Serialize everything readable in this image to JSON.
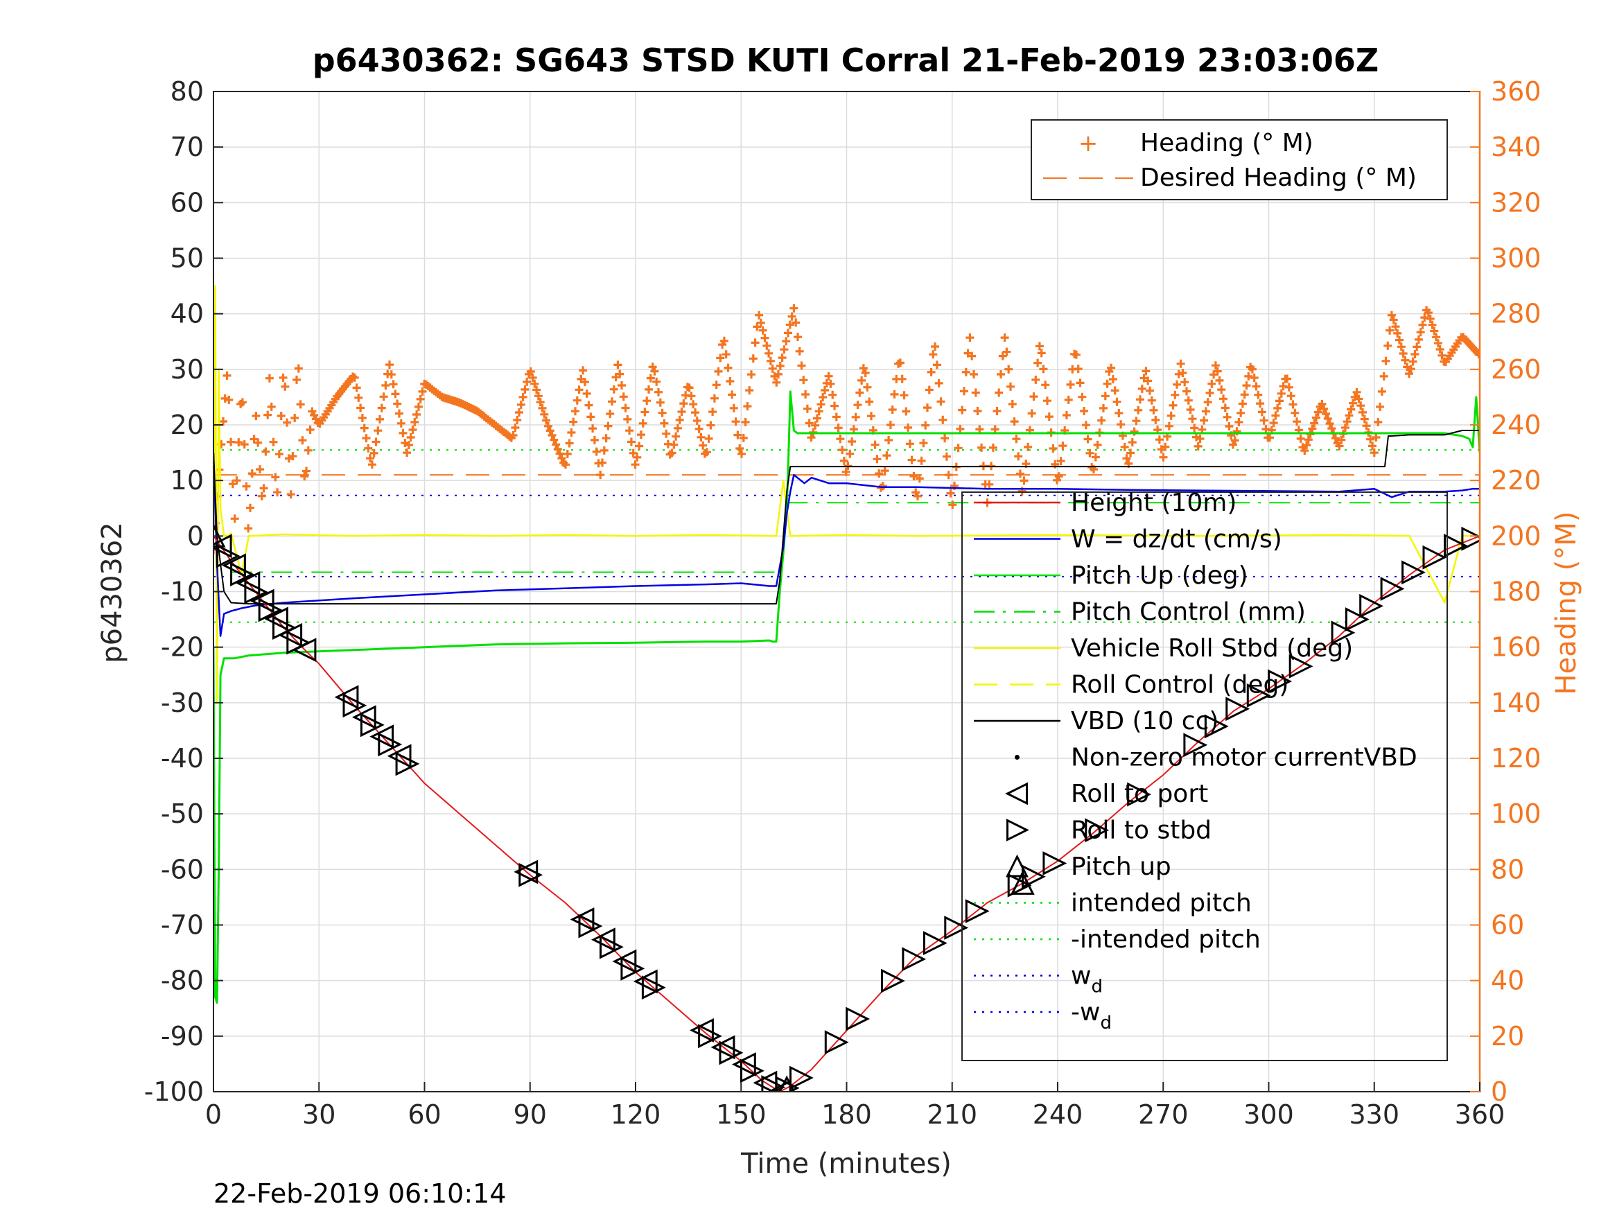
{
  "chart_data": {
    "type": "line",
    "title": "p6430362: SG643 STSD KUTI Corral 21-Feb-2019 23:03:06Z",
    "xlabel": "Time (minutes)",
    "ylabel": "p6430362",
    "y2label": "Heading (°M)",
    "timestamp": "22-Feb-2019 06:10:14",
    "xlim": [
      0,
      360
    ],
    "ylim": [
      -100,
      80
    ],
    "y2lim": [
      0,
      360
    ],
    "x_ticks": [
      "0",
      "30",
      "60",
      "90",
      "120",
      "150",
      "180",
      "210",
      "240",
      "270",
      "300",
      "330",
      "360"
    ],
    "y_ticks": [
      "80",
      "70",
      "60",
      "50",
      "40",
      "30",
      "20",
      "10",
      "0",
      "-10",
      "-20",
      "-30",
      "-40",
      "-50",
      "-60",
      "-70",
      "-80",
      "-90",
      "-100"
    ],
    "y2_ticks": [
      "360",
      "340",
      "320",
      "300",
      "280",
      "260",
      "240",
      "220",
      "200",
      "180",
      "160",
      "140",
      "120",
      "100",
      "80",
      "60",
      "40",
      "20",
      "0"
    ],
    "grid": true,
    "colors": {
      "orange": "#F47520",
      "red": "#E41A1C",
      "blue": "#0000E6",
      "green": "#00E000",
      "yellow": "#F5F500",
      "black": "#000000",
      "grid": "#DCDCDC"
    },
    "legend_heading": {
      "placement": "top-right",
      "entries": [
        "Heading (° M)",
        "Desired Heading (° M)"
      ]
    },
    "legend_main": {
      "placement": "center-right",
      "entries": [
        {
          "label": "Height (10m)",
          "style": "red-line"
        },
        {
          "label": "W = dz/dt (cm/s)",
          "style": "blue-line"
        },
        {
          "label": "Pitch Up (deg)",
          "style": "green-line"
        },
        {
          "label": "Pitch Control (mm)",
          "style": "green-dashdot"
        },
        {
          "label": "Vehicle Roll Stbd (deg)",
          "style": "yellow-line"
        },
        {
          "label": "Roll Control (deg)",
          "style": "yellow-dash"
        },
        {
          "label": "VBD (10 cc)",
          "style": "black-line"
        },
        {
          "label": "Non-zero motor currentVBD",
          "style": "black-dot"
        },
        {
          "label": "Roll to port",
          "style": "left-triangle"
        },
        {
          "label": "Roll to stbd",
          "style": "right-triangle"
        },
        {
          "label": "Pitch up",
          "style": "up-triangle"
        },
        {
          "label": "intended pitch",
          "style": "green-dotted"
        },
        {
          "label": "-intended pitch",
          "style": "green-dotted"
        },
        {
          "label": "w",
          "sub": "d",
          "style": "blue-dotted"
        },
        {
          "label": "-w",
          "sub": "d",
          "style": "blue-dotted"
        }
      ]
    },
    "reference_lines": {
      "intended_pitch": 15.5,
      "neg_intended_pitch": -15.5,
      "w_d": 7.3,
      "neg_w_d": -7.3,
      "desired_heading_deg": 222,
      "pitch_control_dive": -6.5,
      "pitch_control_climb": 6.0
    },
    "series": [
      {
        "name": "Height (10m)",
        "x": [
          0,
          5,
          10,
          15,
          20,
          26,
          30,
          40,
          50,
          60,
          70,
          80,
          90,
          100,
          110,
          120,
          130,
          140,
          150,
          156,
          161,
          164,
          170,
          180,
          190,
          200,
          210,
          220,
          230,
          240,
          250,
          260,
          270,
          280,
          290,
          300,
          310,
          320,
          330,
          340,
          350,
          360
        ],
        "y": [
          0,
          -4.5,
          -8.5,
          -12.5,
          -16.5,
          -20.5,
          -23,
          -30.5,
          -37.5,
          -44.5,
          -50,
          -55.5,
          -61,
          -66,
          -72,
          -78.5,
          -84,
          -89.5,
          -94.5,
          -98,
          -100,
          -99,
          -96,
          -89,
          -82,
          -75.5,
          -71,
          -66,
          -62.5,
          -58.5,
          -53.5,
          -48,
          -43,
          -37,
          -31.5,
          -27.5,
          -23,
          -18,
          -12,
          -7,
          -2.5,
          0
        ]
      },
      {
        "name": "W = dz/dt (cm/s)",
        "x": [
          0,
          1,
          2,
          3,
          5,
          8,
          12,
          20,
          40,
          60,
          80,
          100,
          120,
          140,
          150,
          155,
          158,
          160,
          162,
          163,
          164,
          165,
          168,
          170,
          175,
          180,
          190,
          200,
          220,
          240,
          260,
          280,
          300,
          320,
          330,
          335,
          340,
          350,
          355,
          358,
          360
        ],
        "y": [
          15,
          -5,
          -18,
          -14,
          -13.5,
          -13,
          -12.5,
          -12,
          -11.2,
          -10.5,
          -9.8,
          -9.4,
          -9,
          -8.7,
          -8.5,
          -8.8,
          -9,
          -9,
          -2,
          4,
          8,
          11,
          9.5,
          10.5,
          9.5,
          9.5,
          8.8,
          8.8,
          8.5,
          8.5,
          8.3,
          8.2,
          8.1,
          8.0,
          8.5,
          7.0,
          8.0,
          8.0,
          8.2,
          8.5,
          8.5
        ]
      },
      {
        "name": "Pitch Up (deg)",
        "x": [
          0,
          0.5,
          1,
          1.5,
          2,
          3,
          4,
          6,
          10,
          20,
          40,
          60,
          80,
          100,
          120,
          140,
          150,
          158,
          159,
          160,
          161,
          162,
          163,
          163.5,
          164,
          165,
          166,
          167,
          170,
          180,
          200,
          240,
          280,
          320,
          340,
          350,
          355,
          357,
          358,
          359,
          360
        ],
        "y": [
          -20,
          -83,
          -84,
          -60,
          -25,
          -22,
          -22,
          -22,
          -21.5,
          -21,
          -20.5,
          -20,
          -19.5,
          -19.3,
          -19.2,
          -19.0,
          -19.0,
          -18.8,
          -19,
          -19,
          -10,
          -3,
          5,
          15,
          26,
          19,
          18.5,
          18.5,
          18.5,
          18.5,
          18.5,
          18.5,
          18.5,
          18.5,
          18.5,
          18.5,
          18.0,
          17.5,
          16.0,
          25.0,
          15.0
        ]
      },
      {
        "name": "Vehicle Roll Stbd (deg)",
        "x": [
          0,
          0.5,
          1,
          1.5,
          2,
          3,
          4,
          5,
          8,
          10,
          20,
          40,
          60,
          80,
          100,
          120,
          140,
          160,
          162,
          164,
          180,
          200,
          240,
          280,
          320,
          340,
          350,
          355,
          360
        ],
        "y": [
          0,
          45,
          -30,
          30,
          5,
          0,
          0,
          0.5,
          -7,
          0,
          0.3,
          0,
          0.2,
          0,
          0.2,
          0,
          0.2,
          0,
          10,
          0,
          0.2,
          0,
          0.2,
          0,
          0.2,
          0,
          -12,
          0,
          0
        ]
      },
      {
        "name": "VBD (10 cc)",
        "x": [
          0,
          1,
          2,
          3,
          5,
          10,
          30,
          60,
          100,
          140,
          160,
          161,
          162,
          163,
          164,
          166,
          170,
          200,
          250,
          300,
          333,
          334,
          335,
          340,
          350,
          355,
          360
        ],
        "y": [
          15,
          0,
          -5,
          -10,
          -12,
          -12.2,
          -12.2,
          -12.2,
          -12.2,
          -12.2,
          -12.2,
          -8,
          0,
          8,
          12.5,
          12.5,
          12.5,
          12.5,
          12.5,
          12.5,
          12.5,
          18.0,
          18.0,
          18.2,
          18.2,
          19.0,
          19.0
        ]
      },
      {
        "name": "Heading (° M)",
        "axis": "right",
        "x": [
          0,
          2,
          4,
          6,
          8,
          10,
          12,
          14,
          16,
          18,
          20,
          22,
          24,
          26,
          28,
          30,
          35,
          40,
          45,
          50,
          55,
          60,
          65,
          70,
          75,
          80,
          85,
          90,
          95,
          100,
          105,
          110,
          115,
          120,
          125,
          130,
          135,
          140,
          145,
          150,
          155,
          160,
          165,
          170,
          175,
          180,
          185,
          190,
          195,
          200,
          205,
          210,
          215,
          220,
          225,
          230,
          235,
          240,
          245,
          250,
          255,
          260,
          265,
          270,
          275,
          280,
          285,
          290,
          295,
          300,
          305,
          310,
          315,
          320,
          325,
          330,
          335,
          340,
          345,
          350,
          355,
          360
        ],
        "y": [
          195,
          230,
          260,
          205,
          255,
          200,
          245,
          210,
          258,
          212,
          262,
          215,
          265,
          218,
          245,
          240,
          250,
          258,
          225,
          262,
          230,
          255,
          250,
          248,
          245,
          240,
          235,
          260,
          240,
          225,
          260,
          222,
          262,
          225,
          262,
          228,
          255,
          228,
          272,
          228,
          280,
          255,
          282,
          235,
          258,
          222,
          262,
          215,
          265,
          212,
          270,
          210,
          272,
          212,
          272,
          215,
          270,
          218,
          268,
          222,
          262,
          225,
          260,
          228,
          262,
          232,
          262,
          232,
          262,
          234,
          258,
          230,
          248,
          232,
          252,
          230,
          280,
          258,
          282,
          262,
          272,
          265
        ]
      }
    ],
    "markers": {
      "roll_left_x": [
        2,
        6,
        10,
        14,
        18,
        22,
        26,
        38,
        43,
        48,
        53,
        89,
        105,
        111,
        117,
        123,
        139,
        145,
        151,
        157,
        161
      ],
      "roll_right_x": [
        4,
        8,
        12,
        16,
        20,
        24,
        40,
        45,
        50,
        55,
        90,
        107,
        113,
        119,
        125,
        141,
        147,
        153,
        159,
        163,
        167,
        177,
        183,
        193,
        199,
        205,
        211,
        217,
        229,
        233,
        239,
        251,
        263,
        279,
        285,
        291,
        297,
        303,
        309,
        321,
        325,
        329,
        335,
        341,
        347,
        353,
        358
      ],
      "pitch_up_x": [
        0,
        163,
        230
      ]
    }
  }
}
